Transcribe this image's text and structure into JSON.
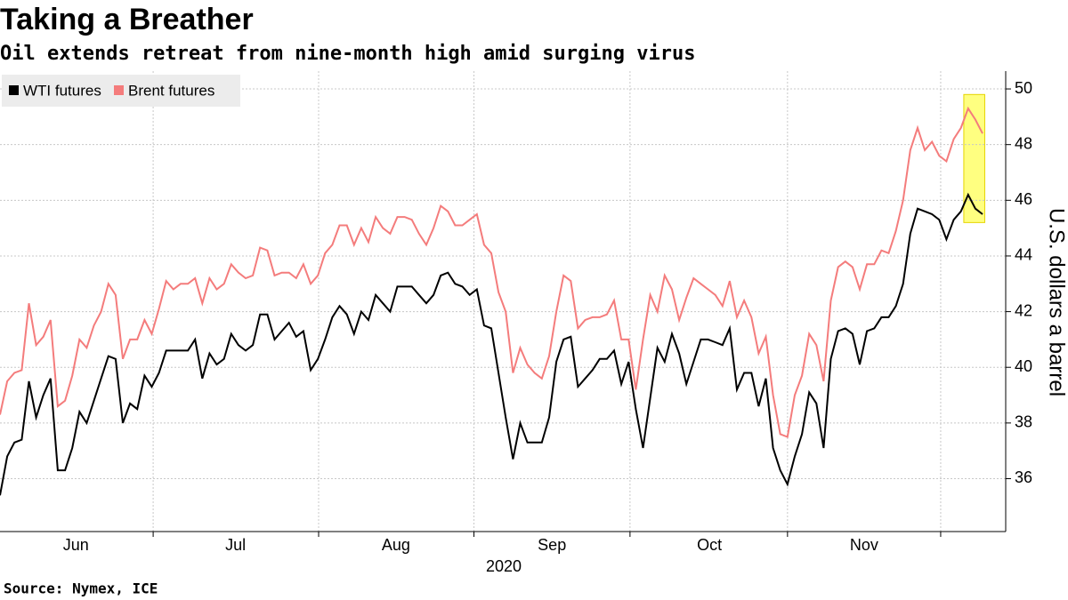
{
  "chart_data": {
    "type": "line",
    "title": "Taking a Breather",
    "subtitle": "Oil extends retreat from nine-month high amid surging virus",
    "source": "Source: Nymex, ICE",
    "y_label": "U.S. dollars a barrel",
    "x_label": "2020",
    "xlim": [
      0,
      139.2
    ],
    "xticks": [
      21.2,
      44.1,
      65.6,
      87.2,
      109.0,
      130.2
    ],
    "xlabels": [
      {
        "value": 10.5,
        "label": "Jun"
      },
      {
        "value": 32.6,
        "label": "Jul"
      },
      {
        "value": 54.8,
        "label": "Aug"
      },
      {
        "value": 76.4,
        "label": "Sep"
      },
      {
        "value": 98.2,
        "label": "Oct"
      },
      {
        "value": 119.6,
        "label": "Nov"
      }
    ],
    "ylim": [
      34.1,
      50.64
    ],
    "yticks": [
      36,
      38,
      40,
      42,
      44,
      46,
      48,
      50
    ],
    "grid": true,
    "legend": "top-left",
    "highlight": {
      "x": [
        133.4,
        136.3
      ],
      "y": [
        45.2,
        49.8
      ],
      "color": "#ffff80"
    },
    "series": [
      {
        "name": "WTI futures",
        "color": "#000000",
        "values": [
          35.4,
          36.8,
          37.3,
          37.4,
          39.5,
          38.2,
          39.0,
          39.6,
          36.3,
          36.3,
          37.1,
          38.4,
          38.0,
          38.8,
          39.6,
          40.4,
          40.3,
          38.0,
          38.7,
          38.5,
          39.7,
          39.3,
          39.8,
          40.6,
          40.6,
          40.6,
          40.6,
          41.0,
          39.6,
          40.5,
          40.1,
          40.3,
          41.2,
          40.8,
          40.6,
          40.8,
          41.9,
          41.9,
          41.0,
          41.3,
          41.6,
          41.1,
          41.3,
          39.9,
          40.3,
          41.0,
          41.8,
          42.2,
          41.9,
          41.2,
          42.0,
          41.7,
          42.6,
          42.3,
          42.0,
          42.9,
          42.9,
          42.9,
          42.6,
          42.3,
          42.6,
          43.3,
          43.4,
          43.0,
          42.9,
          42.6,
          42.8,
          41.5,
          41.4,
          39.8,
          38.2,
          36.7,
          38.0,
          37.3,
          37.3,
          37.3,
          38.2,
          40.2,
          41.0,
          41.1,
          39.3,
          39.6,
          39.9,
          40.3,
          40.3,
          40.6,
          39.4,
          40.2,
          38.5,
          37.1,
          38.9,
          40.7,
          40.2,
          41.2,
          40.5,
          39.4,
          40.2,
          41.0,
          41.0,
          40.9,
          40.8,
          41.4,
          39.2,
          39.8,
          39.8,
          38.6,
          39.6,
          37.1,
          36.3,
          35.8,
          36.8,
          37.6,
          39.1,
          38.7,
          37.1,
          40.3,
          41.3,
          41.4,
          41.2,
          40.1,
          41.3,
          41.4,
          41.8,
          41.8,
          42.2,
          43.0,
          44.8,
          45.7,
          45.6,
          45.5,
          45.3,
          44.6,
          45.3,
          45.6,
          46.2,
          45.7,
          45.5
        ]
      },
      {
        "name": "Brent futures",
        "color": "#f47c7c",
        "values": [
          38.3,
          39.5,
          39.8,
          39.9,
          42.3,
          40.8,
          41.1,
          41.7,
          38.6,
          38.8,
          39.7,
          41.0,
          40.7,
          41.5,
          42.0,
          43.0,
          42.6,
          40.3,
          41.0,
          41.0,
          41.7,
          41.2,
          42.1,
          43.1,
          42.8,
          43.0,
          43.0,
          43.2,
          42.3,
          43.2,
          42.8,
          43.0,
          43.7,
          43.4,
          43.2,
          43.3,
          44.3,
          44.2,
          43.3,
          43.4,
          43.4,
          43.2,
          43.7,
          43.0,
          43.3,
          44.1,
          44.4,
          45.1,
          45.1,
          44.4,
          45.0,
          44.5,
          45.4,
          45.0,
          44.8,
          45.4,
          45.4,
          45.3,
          44.8,
          44.4,
          45.0,
          45.8,
          45.6,
          45.1,
          45.1,
          45.3,
          45.5,
          44.4,
          44.1,
          42.7,
          42.0,
          39.8,
          40.7,
          40.1,
          39.8,
          39.6,
          40.4,
          42.0,
          43.3,
          43.1,
          41.4,
          41.7,
          41.8,
          41.8,
          41.9,
          42.4,
          41.0,
          41.0,
          39.2,
          41.0,
          42.6,
          42.0,
          43.3,
          42.8,
          41.7,
          42.5,
          43.2,
          43.0,
          42.8,
          42.6,
          42.2,
          43.1,
          41.8,
          42.4,
          41.8,
          40.5,
          41.1,
          39.0,
          37.6,
          37.5,
          39.0,
          39.7,
          41.2,
          40.8,
          39.5,
          42.4,
          43.6,
          43.8,
          43.6,
          42.8,
          43.7,
          43.7,
          44.2,
          44.1,
          44.9,
          46.0,
          47.8,
          48.6,
          47.8,
          48.1,
          47.6,
          47.4,
          48.2,
          48.6,
          49.3,
          48.9,
          48.4
        ]
      }
    ]
  }
}
